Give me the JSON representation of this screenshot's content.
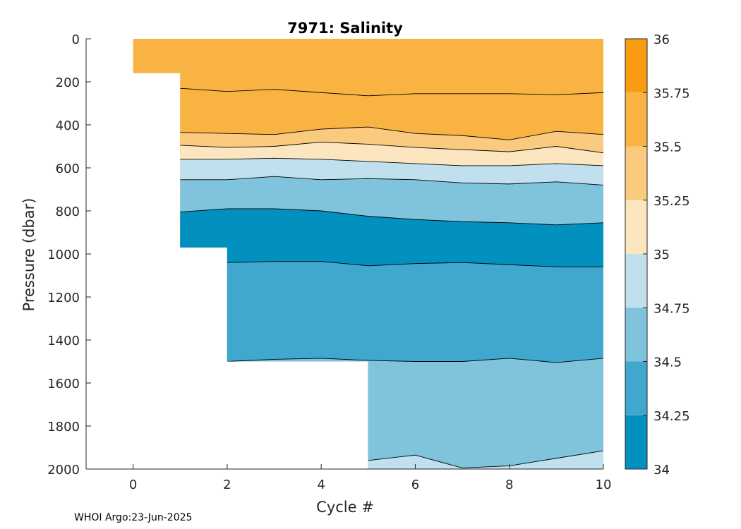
{
  "chart_data": {
    "type": "heatmap",
    "title": "7971:  Salinity",
    "xlabel": "Cycle #",
    "ylabel": "Pressure (dbar)",
    "xlim": [
      -1,
      10
    ],
    "ylim": [
      2000,
      0
    ],
    "y_reversed": true,
    "xticks": [
      0,
      2,
      4,
      6,
      8,
      10
    ],
    "yticks": [
      0,
      200,
      400,
      600,
      800,
      1000,
      1200,
      1400,
      1600,
      1800,
      2000
    ],
    "grid": false,
    "colorbar": {
      "levels": [
        34,
        34.25,
        34.5,
        34.75,
        35,
        35.25,
        35.5,
        35.75,
        36
      ],
      "tick_labels": [
        "34",
        "34.25",
        "34.5",
        "34.75",
        "35",
        "35.25",
        "35.5",
        "35.75",
        "36"
      ],
      "colors": [
        "#0290bf",
        "#40a8ce",
        "#7fc3dd",
        "#bfe0ec",
        "#fce6bf",
        "#facb7f",
        "#f9b342",
        "#f99c13"
      ]
    },
    "profile_depth_max": [
      {
        "cycle": 0,
        "pressure": 160
      },
      {
        "cycle": 1,
        "pressure": 970
      },
      {
        "cycle": 2,
        "pressure": 1500
      },
      {
        "cycle": 5,
        "pressure": 2000
      }
    ],
    "contours": [
      {
        "level": 35.5,
        "x": [
          1,
          2,
          3,
          4,
          5,
          6,
          7,
          8,
          9,
          10
        ],
        "y": [
          230,
          245,
          235,
          250,
          265,
          255,
          255,
          255,
          260,
          250
        ]
      },
      {
        "level": 35.25,
        "x": [
          1,
          2,
          3,
          4,
          5,
          6,
          7,
          8,
          9,
          10
        ],
        "y": [
          435,
          440,
          445,
          420,
          410,
          440,
          450,
          470,
          430,
          445
        ]
      },
      {
        "level": 35,
        "x": [
          1,
          2,
          3,
          4,
          5,
          6,
          7,
          8,
          9,
          10
        ],
        "y": [
          495,
          505,
          500,
          480,
          490,
          505,
          515,
          525,
          500,
          530
        ]
      },
      {
        "level": 34.75,
        "x": [
          1,
          2,
          3,
          4,
          5,
          6,
          7,
          8,
          9,
          10
        ],
        "y": [
          560,
          560,
          555,
          560,
          570,
          580,
          590,
          590,
          580,
          590
        ]
      },
      {
        "level": 34.5,
        "x": [
          1,
          2,
          3,
          4,
          5,
          6,
          7,
          8,
          9,
          10
        ],
        "y": [
          655,
          655,
          640,
          655,
          650,
          655,
          670,
          675,
          665,
          680
        ]
      },
      {
        "level": 34.25,
        "x": [
          1,
          2,
          3,
          4,
          5,
          6,
          7,
          8,
          9,
          10
        ],
        "y": [
          805,
          790,
          790,
          800,
          825,
          840,
          850,
          855,
          865,
          855
        ]
      },
      {
        "level": 34.25,
        "x": [
          2,
          3,
          4,
          5,
          6,
          7,
          8,
          9,
          10
        ],
        "y": [
          1040,
          1035,
          1035,
          1055,
          1045,
          1040,
          1050,
          1060,
          1060
        ]
      },
      {
        "level": 34.5,
        "x": [
          2,
          3,
          4,
          5,
          6,
          7,
          8,
          9,
          10
        ],
        "y": [
          1500,
          1490,
          1485,
          1495,
          1500,
          1500,
          1485,
          1505,
          1485
        ]
      },
      {
        "level": 34.75,
        "x": [
          5,
          6,
          7,
          8,
          9,
          10
        ],
        "y": [
          1960,
          1935,
          1995,
          1985,
          1950,
          1915
        ]
      }
    ]
  },
  "footer": "WHOI Argo:23-Jun-2025"
}
